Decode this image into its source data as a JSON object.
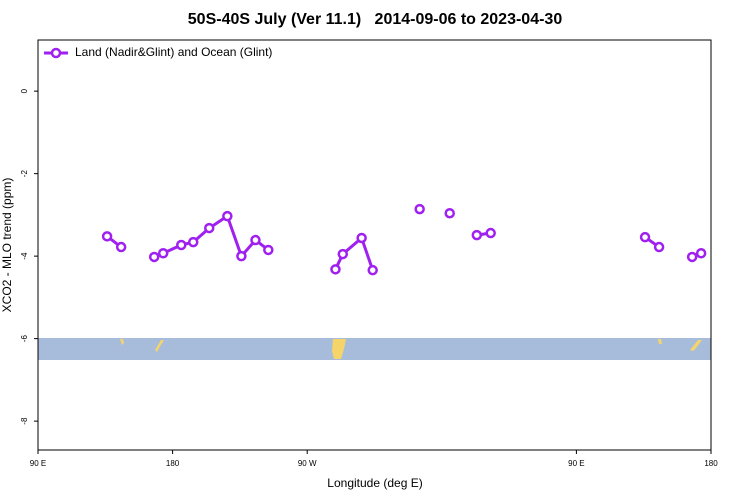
{
  "chart_data": {
    "type": "line",
    "title": "50S-40S July (Ver 11.1)   2014-09-06 to 2023-04-30",
    "x_label": "Longitude (deg E)",
    "y_label": "XCO2 - MLO trend (ppm)",
    "xlim": [
      90,
      540
    ],
    "ylim": [
      -8.7,
      1.24
    ],
    "xticks": [
      {
        "value": 90,
        "label": "90 E"
      },
      {
        "value": 180,
        "label": "180"
      },
      {
        "value": 270,
        "label": "90 W"
      },
      {
        "value": 450,
        "label": "90 E"
      },
      {
        "value": 540,
        "label": "180"
      }
    ],
    "yticks": [
      0,
      -2,
      -4,
      -6,
      -8
    ],
    "legend": "top-left",
    "series": [
      {
        "name": "Land (Nadir&Glint) and Ocean (Glint)",
        "color": "#a020f0",
        "x": [
          136.2,
          145.6,
          null,
          167.7,
          173.7,
          185.8,
          193.8,
          204.5,
          216.6,
          226,
          235.4,
          244,
          null,
          288.9,
          293.8,
          306.4,
          313.8,
          null,
          345.2,
          null,
          365.3,
          null,
          383.4,
          392.7,
          null,
          495.9,
          505.3,
          null,
          527.4,
          533.4
        ],
        "values": [
          -3.52,
          -3.78,
          null,
          -4.02,
          -3.93,
          -3.73,
          -3.66,
          -3.32,
          -3.03,
          -4.0,
          -3.61,
          -3.85,
          null,
          -4.32,
          -3.95,
          -3.56,
          -4.34,
          null,
          -2.86,
          null,
          -2.96,
          null,
          -3.49,
          -3.44,
          null,
          -3.54,
          -3.78,
          null,
          -4.02,
          -3.93
        ]
      }
    ]
  }
}
